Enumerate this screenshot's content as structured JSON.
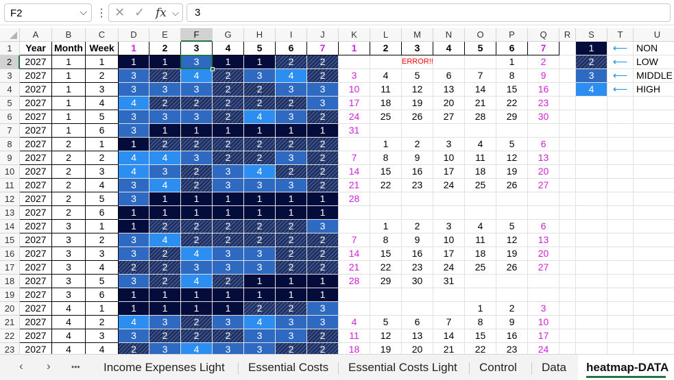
{
  "namebox": {
    "value": "F2"
  },
  "formula": {
    "value": "3",
    "fx_label": "fx"
  },
  "columns": [
    {
      "label": "",
      "w": 0
    },
    {
      "label": "A"
    },
    {
      "label": "B"
    },
    {
      "label": "C"
    },
    {
      "label": "D"
    },
    {
      "label": "E"
    },
    {
      "label": "F"
    },
    {
      "label": "G"
    },
    {
      "label": "H"
    },
    {
      "label": "I"
    },
    {
      "label": "J"
    },
    {
      "label": "K"
    },
    {
      "label": "L"
    },
    {
      "label": "M"
    },
    {
      "label": "N"
    },
    {
      "label": "O"
    },
    {
      "label": "P"
    },
    {
      "label": "Q"
    },
    {
      "label": "R"
    },
    {
      "label": "S"
    },
    {
      "label": "T"
    },
    {
      "label": "U"
    }
  ],
  "row_numbers": [
    "1",
    "2",
    "3",
    "4",
    "5",
    "6",
    "7",
    "8",
    "9",
    "10",
    "11",
    "12",
    "13",
    "14",
    "15",
    "16",
    "17",
    "18",
    "19",
    "20",
    "21",
    "22",
    "23"
  ],
  "headers": [
    "Year",
    "Month",
    "Week",
    "1",
    "2",
    "3",
    "4",
    "5",
    "6",
    "7",
    "1",
    "2",
    "3",
    "4",
    "5",
    "6",
    "7"
  ],
  "heat": [
    [
      1,
      1,
      3,
      1,
      1,
      2,
      2
    ],
    [
      3,
      2,
      4,
      2,
      3,
      4,
      2
    ],
    [
      3,
      3,
      3,
      2,
      2,
      3,
      3
    ],
    [
      4,
      2,
      2,
      2,
      2,
      2,
      3
    ],
    [
      3,
      3,
      3,
      2,
      4,
      3,
      2
    ],
    [
      3,
      1,
      1,
      1,
      1,
      1,
      1
    ],
    [
      1,
      2,
      2,
      2,
      2,
      2,
      2
    ],
    [
      4,
      4,
      3,
      2,
      2,
      3,
      2
    ],
    [
      4,
      3,
      2,
      3,
      4,
      2,
      2
    ],
    [
      3,
      4,
      2,
      3,
      3,
      3,
      2
    ],
    [
      3,
      1,
      1,
      1,
      1,
      1,
      1
    ],
    [
      1,
      1,
      1,
      1,
      1,
      1,
      1
    ],
    [
      1,
      2,
      2,
      2,
      2,
      2,
      3
    ],
    [
      3,
      4,
      2,
      2,
      2,
      2,
      2
    ],
    [
      3,
      2,
      4,
      3,
      3,
      2,
      2
    ],
    [
      2,
      2,
      3,
      3,
      3,
      2,
      2
    ],
    [
      3,
      2,
      4,
      2,
      1,
      1,
      1
    ],
    [
      1,
      1,
      1,
      1,
      1,
      1,
      1
    ],
    [
      1,
      1,
      1,
      1,
      2,
      2,
      3
    ],
    [
      4,
      3,
      2,
      3,
      4,
      3,
      3
    ],
    [
      3,
      2,
      2,
      2,
      3,
      3,
      2
    ],
    [
      2,
      3,
      4,
      3,
      3,
      2,
      2
    ]
  ],
  "rows": [
    {
      "year": "2027",
      "month": "1",
      "week": "1",
      "cal": [
        "",
        "",
        "ERROR!!",
        "",
        "",
        "1",
        "2"
      ]
    },
    {
      "year": "2027",
      "month": "1",
      "week": "2",
      "cal": [
        "3",
        "4",
        "5",
        "6",
        "7",
        "8",
        "9"
      ]
    },
    {
      "year": "2027",
      "month": "1",
      "week": "3",
      "cal": [
        "10",
        "11",
        "12",
        "13",
        "14",
        "15",
        "16"
      ]
    },
    {
      "year": "2027",
      "month": "1",
      "week": "4",
      "cal": [
        "17",
        "18",
        "19",
        "20",
        "21",
        "22",
        "23"
      ]
    },
    {
      "year": "2027",
      "month": "1",
      "week": "5",
      "cal": [
        "24",
        "25",
        "26",
        "27",
        "28",
        "29",
        "30"
      ]
    },
    {
      "year": "2027",
      "month": "1",
      "week": "6",
      "cal": [
        "31",
        "",
        "",
        "",
        "",
        "",
        ""
      ]
    },
    {
      "year": "2027",
      "month": "2",
      "week": "1",
      "cal": [
        "",
        "1",
        "2",
        "3",
        "4",
        "5",
        "6"
      ]
    },
    {
      "year": "2027",
      "month": "2",
      "week": "2",
      "cal": [
        "7",
        "8",
        "9",
        "10",
        "11",
        "12",
        "13"
      ]
    },
    {
      "year": "2027",
      "month": "2",
      "week": "3",
      "cal": [
        "14",
        "15",
        "16",
        "17",
        "18",
        "19",
        "20"
      ]
    },
    {
      "year": "2027",
      "month": "2",
      "week": "4",
      "cal": [
        "21",
        "22",
        "23",
        "24",
        "25",
        "26",
        "27"
      ]
    },
    {
      "year": "2027",
      "month": "2",
      "week": "5",
      "cal": [
        "28",
        "",
        "",
        "",
        "",
        "",
        ""
      ]
    },
    {
      "year": "2027",
      "month": "2",
      "week": "6",
      "cal": [
        "",
        "",
        "",
        "",
        "",
        "",
        ""
      ]
    },
    {
      "year": "2027",
      "month": "3",
      "week": "1",
      "cal": [
        "",
        "1",
        "2",
        "3",
        "4",
        "5",
        "6"
      ]
    },
    {
      "year": "2027",
      "month": "3",
      "week": "2",
      "cal": [
        "7",
        "8",
        "9",
        "10",
        "11",
        "12",
        "13"
      ]
    },
    {
      "year": "2027",
      "month": "3",
      "week": "3",
      "cal": [
        "14",
        "15",
        "16",
        "17",
        "18",
        "19",
        "20"
      ]
    },
    {
      "year": "2027",
      "month": "3",
      "week": "4",
      "cal": [
        "21",
        "22",
        "23",
        "24",
        "25",
        "26",
        "27"
      ]
    },
    {
      "year": "2027",
      "month": "3",
      "week": "5",
      "cal": [
        "28",
        "29",
        "30",
        "31",
        "",
        "",
        ""
      ]
    },
    {
      "year": "2027",
      "month": "3",
      "week": "6",
      "cal": [
        "",
        "",
        "",
        "",
        "",
        "",
        ""
      ]
    },
    {
      "year": "2027",
      "month": "4",
      "week": "1",
      "cal": [
        "",
        "",
        "",
        "",
        "1",
        "2",
        "3"
      ]
    },
    {
      "year": "2027",
      "month": "4",
      "week": "2",
      "cal": [
        "4",
        "5",
        "6",
        "7",
        "8",
        "9",
        "10"
      ]
    },
    {
      "year": "2027",
      "month": "4",
      "week": "3",
      "cal": [
        "11",
        "12",
        "13",
        "14",
        "15",
        "16",
        "17"
      ]
    },
    {
      "year": "2027",
      "month": "4",
      "week": "4",
      "cal": [
        "18",
        "19",
        "20",
        "21",
        "22",
        "23",
        "24"
      ]
    }
  ],
  "legend": [
    {
      "value": "1",
      "label": "NON"
    },
    {
      "value": "2",
      "label": "LOW"
    },
    {
      "value": "3",
      "label": "MIDDLE"
    },
    {
      "value": "4",
      "label": "HIGH"
    }
  ],
  "sheet_tabs": [
    "Income Expenses Light",
    "Essential Costs",
    "Essential Costs Light",
    "Control",
    "Data",
    "heatmap-DATA"
  ],
  "active_tab": "heatmap-DATA",
  "tab_nav": {
    "prev": "‹",
    "next": "›",
    "more": "•••"
  }
}
